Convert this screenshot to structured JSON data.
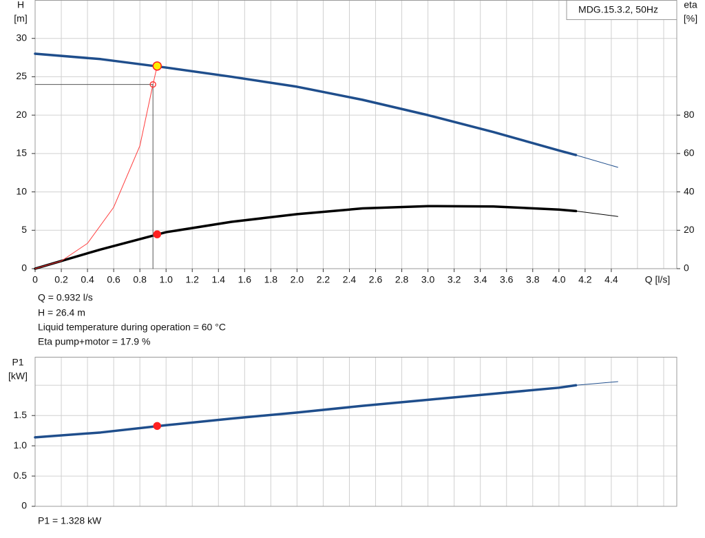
{
  "chart_data": [
    {
      "type": "line",
      "y_label": "H",
      "y_unit": "[m]",
      "y2_label": "eta",
      "y2_unit": "[%]",
      "x_label": "Q [l/s]",
      "legend_text": "MDG.15.3.2, 50Hz",
      "xlim": [
        0,
        4.9
      ],
      "xticks": [
        0,
        0.2,
        0.4,
        0.6,
        0.8,
        {
          "value": 1,
          "label": "1.0"
        },
        1.2,
        1.4,
        1.6,
        1.8,
        {
          "value": 2,
          "label": "2.0"
        },
        2.2,
        2.4,
        2.6,
        2.8,
        {
          "value": 3,
          "label": "3.0"
        },
        3.2,
        3.4,
        3.6,
        3.8,
        {
          "value": 4,
          "label": "4.0"
        },
        4.2,
        4.4
      ],
      "xgrid": [
        0,
        0.2,
        0.4,
        0.6,
        0.8,
        1,
        1.2,
        1.4,
        1.6,
        1.8,
        2,
        2.2,
        2.4,
        2.6,
        2.8,
        3,
        3.2,
        3.4,
        3.6,
        3.8,
        4,
        4.2,
        4.4,
        4.6,
        4.8
      ],
      "ylim": [
        0,
        35
      ],
      "yticks": [
        0,
        5,
        10,
        15,
        20,
        25,
        30
      ],
      "ygrid": [
        0,
        5,
        10,
        15,
        20,
        25,
        30
      ],
      "y2lim": [
        0,
        140
      ],
      "y2ticks": [
        0,
        20,
        40,
        60,
        80
      ],
      "grid": true,
      "series": [
        {
          "color": "#1f4e8c",
          "width": 3.5,
          "x": [
            0,
            0.5,
            1,
            1.5,
            2,
            2.5,
            3,
            3.5,
            4,
            4.13
          ],
          "values": [
            28,
            27.3,
            26.2,
            25,
            23.7,
            22,
            20,
            17.8,
            15.4,
            14.8
          ]
        },
        {
          "color": "#1f4e8c",
          "width": 1,
          "x": [
            4.13,
            4.45
          ],
          "values": [
            14.8,
            13.2
          ]
        },
        {
          "color": "#000000",
          "width": 3.5,
          "axis": "y2",
          "x": [
            0,
            0.5,
            1,
            1.5,
            2,
            2.5,
            3,
            3.5,
            4,
            4.13
          ],
          "values": [
            0,
            10,
            19,
            24.4,
            28.4,
            31.4,
            32.6,
            32.4,
            30.8,
            30
          ]
        },
        {
          "color": "#000000",
          "width": 1,
          "axis": "y2",
          "x": [
            4.13,
            4.45
          ],
          "values": [
            30,
            27.2
          ]
        },
        {
          "color": "#ff3b3b",
          "width": 1,
          "x": [
            0,
            0.2,
            0.4,
            0.6,
            0.8,
            0.9,
            0.932
          ],
          "values": [
            0,
            1,
            3.3,
            8,
            16,
            24,
            26.4
          ]
        },
        {
          "color": "#555555",
          "width": 1,
          "x": [
            0,
            0.9,
            0.9
          ],
          "values": [
            24,
            24,
            0
          ]
        }
      ],
      "points": [
        {
          "x": 0.9,
          "y": 24,
          "fill": "none",
          "stroke": "#ff3b3b",
          "r": 4
        },
        {
          "x": 0.932,
          "y": 26.4,
          "fill": "#ffee00",
          "stroke": "#ff2020",
          "r": 6
        },
        {
          "x": 0.932,
          "y": 17.9,
          "axis": "y2",
          "fill": "#ff2020",
          "stroke": "#ff2020",
          "r": 5
        }
      ],
      "annotations": [
        "Q = 0.932 l/s",
        "H = 26.4 m",
        "Liquid temperature during operation = 60 °C",
        "Eta pump+motor = 17.9 %"
      ]
    },
    {
      "type": "line",
      "y_label": "P1",
      "y_unit": "[kW]",
      "xlim": [
        0,
        4.9
      ],
      "xgrid": [
        0,
        0.2,
        0.4,
        0.6,
        0.8,
        1,
        1.2,
        1.4,
        1.6,
        1.8,
        2,
        2.2,
        2.4,
        2.6,
        2.8,
        3,
        3.2,
        3.4,
        3.6,
        3.8,
        4,
        4.2,
        4.4,
        4.6,
        4.8
      ],
      "ylim": [
        0,
        2.47
      ],
      "yticks": [
        0,
        0.5,
        {
          "value": 1,
          "label": "1.0"
        },
        1.5
      ],
      "ygrid": [
        0,
        0.5,
        1,
        1.5,
        2
      ],
      "grid": true,
      "series": [
        {
          "color": "#1f4e8c",
          "width": 3.5,
          "x": [
            0,
            0.5,
            1,
            1.5,
            2,
            2.5,
            3,
            3.5,
            4,
            4.13
          ],
          "values": [
            1.14,
            1.22,
            1.34,
            1.45,
            1.55,
            1.66,
            1.76,
            1.86,
            1.96,
            2.0
          ]
        },
        {
          "color": "#1f4e8c",
          "width": 1,
          "x": [
            4.13,
            4.45
          ],
          "values": [
            2.0,
            2.06
          ]
        }
      ],
      "points": [
        {
          "x": 0.932,
          "y": 1.328,
          "fill": "#ff2020",
          "stroke": "#ff2020",
          "r": 5
        }
      ],
      "annotations": [
        "P1 = 1.328 kW"
      ]
    }
  ]
}
